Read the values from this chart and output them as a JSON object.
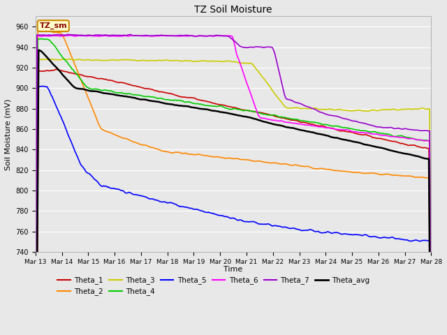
{
  "title": "TZ Soil Moisture",
  "xlabel": "Time",
  "ylabel": "Soil Moisture (mV)",
  "ylim": [
    740,
    970
  ],
  "xlim": [
    0,
    15
  ],
  "figsize": [
    6.4,
    4.8
  ],
  "dpi": 100,
  "background_color": "#e8e8e8",
  "grid_color": "#ffffff",
  "xtick_labels": [
    "Mar 13",
    "Mar 14",
    "Mar 15",
    "Mar 16",
    "Mar 17",
    "Mar 18",
    "Mar 19",
    "Mar 20",
    "Mar 21",
    "Mar 22",
    "Mar 23",
    "Mar 24",
    "Mar 25",
    "Mar 26",
    "Mar 27",
    "Mar 28"
  ],
  "label_box": {
    "text": "TZ_sm",
    "facecolor": "#ffffcc",
    "edgecolor": "#cc8800",
    "textcolor": "#880000"
  },
  "legend": [
    {
      "label": "Theta_1",
      "color": "#cc0000",
      "lw": 1.5
    },
    {
      "label": "Theta_2",
      "color": "#ff8800",
      "lw": 1.5
    },
    {
      "label": "Theta_3",
      "color": "#cccc00",
      "lw": 1.5
    },
    {
      "label": "Theta_4",
      "color": "#00cc00",
      "lw": 1.5
    },
    {
      "label": "Theta_5",
      "color": "#0000ff",
      "lw": 1.5
    },
    {
      "label": "Theta_6",
      "color": "#ff00ff",
      "lw": 1.5
    },
    {
      "label": "Theta_7",
      "color": "#9900cc",
      "lw": 1.5
    },
    {
      "label": "Theta_avg",
      "color": "#000000",
      "lw": 2.0
    }
  ]
}
